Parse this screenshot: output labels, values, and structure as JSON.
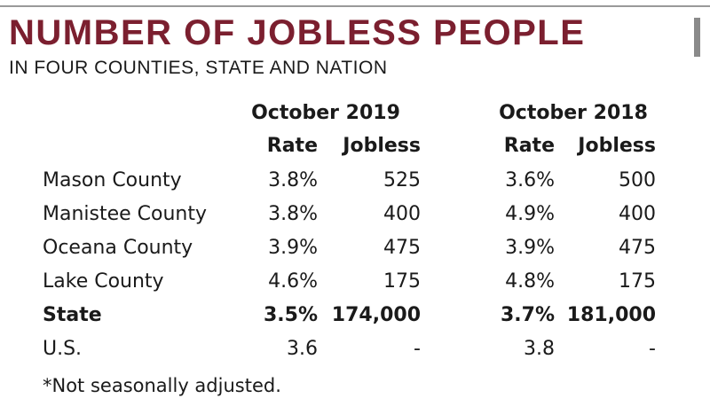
{
  "chart_data": {
    "type": "table",
    "title": "NUMBER OF JOBLESS PEOPLE",
    "subtitle": "IN FOUR COUNTIES, STATE AND NATION",
    "periods": [
      "October 2019",
      "October 2018"
    ],
    "columns": [
      "Rate",
      "Jobless",
      "Rate",
      "Jobless"
    ],
    "rows": [
      {
        "label": "Mason County",
        "values": [
          "3.8%",
          "525",
          "3.6%",
          "500"
        ],
        "bold": false
      },
      {
        "label": "Manistee County",
        "values": [
          "3.8%",
          "400",
          "4.9%",
          "400"
        ],
        "bold": false
      },
      {
        "label": "Oceana County",
        "values": [
          "3.9%",
          "475",
          "3.9%",
          "475"
        ],
        "bold": false
      },
      {
        "label": "Lake County",
        "values": [
          "4.6%",
          "175",
          "4.8%",
          "175"
        ],
        "bold": false
      },
      {
        "label": "State",
        "values": [
          "3.5%",
          "174,000",
          "3.7%",
          "181,000"
        ],
        "bold": true
      },
      {
        "label": "U.S.",
        "values": [
          "3.6",
          "-",
          "3.8",
          "-"
        ],
        "bold": false
      }
    ],
    "footnote": "*Not seasonally adjusted."
  },
  "colors": {
    "title": "#7b1f2f",
    "text": "#1a1a1a"
  }
}
